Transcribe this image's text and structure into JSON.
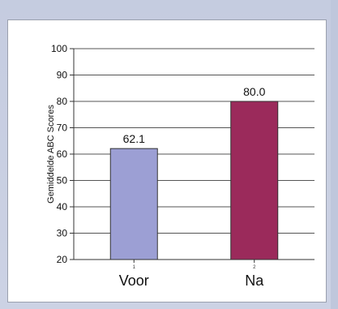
{
  "chart_data": {
    "type": "bar",
    "ylabel": "Gemiddelde ABC Scores",
    "ylim": [
      20,
      100
    ],
    "yticks": [
      20,
      30,
      40,
      50,
      60,
      70,
      80,
      90,
      100
    ],
    "grid": true,
    "categories": [
      "Voor",
      "Na"
    ],
    "category_indices": [
      "1",
      "2"
    ],
    "values": [
      62.1,
      80.0
    ],
    "data_labels": [
      "62.1",
      "80.0"
    ],
    "colors": [
      "#9c9fd4",
      "#9b2a5b"
    ]
  }
}
